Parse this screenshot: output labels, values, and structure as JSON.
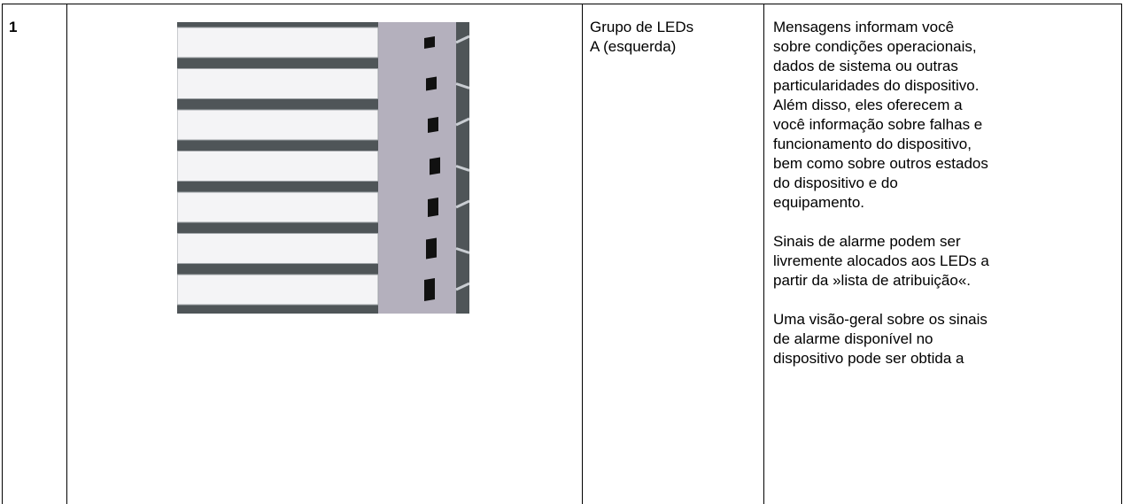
{
  "table": {
    "rows": [
      [
        "1",
        [
          "Grupo de LEDs",
          "A (esquerda)"
        ],
        [
          [
            "Mensagens informam você",
            "sobre condições operacionais,",
            "dados de sistema ou outras",
            "particularidades do dispositivo.",
            "Além disso, eles oferecem a",
            "você informação sobre falhas e",
            "funcionamento do dispositivo,",
            "bem como sobre outros estados",
            "do dispositivo e do",
            "equipamento."
          ],
          [
            "Sinais de alarme podem ser",
            "livremente alocados aos LEDs a",
            "partir da »lista de atribuição«."
          ],
          [
            "Uma visão-geral sobre os sinais",
            "de alarme disponível no",
            "dispositivo pode ser obtida a"
          ]
        ]
      ]
    ]
  }
}
